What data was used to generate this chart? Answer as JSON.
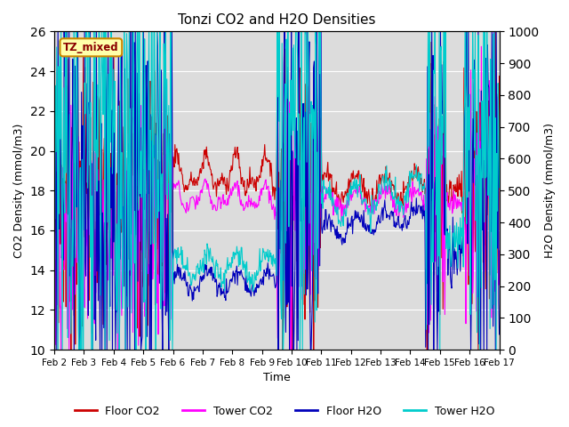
{
  "title": "Tonzi CO2 and H2O Densities",
  "xlabel": "Time",
  "ylabel_left": "CO2 Density (mmol/m3)",
  "ylabel_right": "H2O Density (mmol/m3)",
  "annotation_text": "TZ_mixed",
  "ylim_left": [
    10,
    26
  ],
  "ylim_right": [
    0,
    1000
  ],
  "yticks_left": [
    10,
    12,
    14,
    16,
    18,
    20,
    22,
    24,
    26
  ],
  "yticks_right": [
    0,
    100,
    200,
    300,
    400,
    500,
    600,
    700,
    800,
    900,
    1000
  ],
  "xtick_labels": [
    "Feb 2",
    "Feb 3",
    "Feb 4",
    "Feb 5",
    "Feb 6",
    "Feb 7",
    "Feb 8",
    "Feb 9",
    "Feb 10",
    "Feb 11",
    "Feb 12",
    "Feb 13",
    "Feb 14",
    "Feb 15",
    "Feb 16",
    "Feb 17"
  ],
  "colors": {
    "floor_co2": "#cc0000",
    "tower_co2": "#ff00ff",
    "floor_h2o": "#0000bb",
    "tower_h2o": "#00cccc"
  },
  "legend_labels": [
    "Floor CO2",
    "Tower CO2",
    "Floor H2O",
    "Tower H2O"
  ],
  "background_color": "#dcdcdc",
  "figsize": [
    6.4,
    4.8
  ],
  "dpi": 100
}
